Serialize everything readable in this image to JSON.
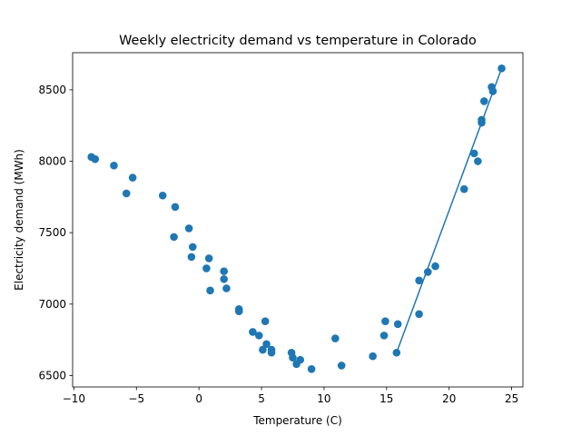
{
  "chart_data": {
    "type": "scatter",
    "title": "Weekly electricity demand vs temperature in Colorado",
    "xlabel": "Temperature (C)",
    "ylabel": "Electricity demand (MWh)",
    "xlim": [
      -10.1,
      25.9
    ],
    "ylim": [
      6420,
      8760
    ],
    "xticks": [
      -10,
      -5,
      0,
      5,
      10,
      15,
      20,
      25
    ],
    "yticks": [
      6500,
      7000,
      7500,
      8000,
      8500
    ],
    "grid": false,
    "legend": "none",
    "marker_color": "#1f77b4",
    "line_color": "#1f77b4",
    "points": [
      {
        "x": -8.6,
        "y": 8030
      },
      {
        "x": -8.3,
        "y": 8015
      },
      {
        "x": -6.8,
        "y": 7970
      },
      {
        "x": -5.3,
        "y": 7885
      },
      {
        "x": -5.8,
        "y": 7775
      },
      {
        "x": -2.9,
        "y": 7760
      },
      {
        "x": -1.9,
        "y": 7680
      },
      {
        "x": -0.8,
        "y": 7530
      },
      {
        "x": -2.0,
        "y": 7470
      },
      {
        "x": -0.5,
        "y": 7400
      },
      {
        "x": -0.6,
        "y": 7330
      },
      {
        "x": 0.8,
        "y": 7320
      },
      {
        "x": 0.6,
        "y": 7250
      },
      {
        "x": 2.0,
        "y": 7230
      },
      {
        "x": 2.0,
        "y": 7175
      },
      {
        "x": 2.2,
        "y": 7110
      },
      {
        "x": 0.9,
        "y": 7095
      },
      {
        "x": 3.2,
        "y": 6965
      },
      {
        "x": 3.2,
        "y": 6950
      },
      {
        "x": 5.3,
        "y": 6880
      },
      {
        "x": 4.3,
        "y": 6805
      },
      {
        "x": 4.8,
        "y": 6780
      },
      {
        "x": 5.4,
        "y": 6720
      },
      {
        "x": 5.1,
        "y": 6680
      },
      {
        "x": 5.8,
        "y": 6680
      },
      {
        "x": 5.8,
        "y": 6660
      },
      {
        "x": 7.4,
        "y": 6660
      },
      {
        "x": 7.5,
        "y": 6625
      },
      {
        "x": 8.1,
        "y": 6610
      },
      {
        "x": 7.8,
        "y": 6580
      },
      {
        "x": 9.0,
        "y": 6545
      },
      {
        "x": 10.9,
        "y": 6760
      },
      {
        "x": 11.4,
        "y": 6570
      },
      {
        "x": 13.9,
        "y": 6635
      },
      {
        "x": 14.9,
        "y": 6880
      },
      {
        "x": 14.8,
        "y": 6780
      },
      {
        "x": 15.9,
        "y": 6860
      },
      {
        "x": 15.8,
        "y": 6660
      },
      {
        "x": 17.6,
        "y": 6930
      },
      {
        "x": 17.6,
        "y": 7165
      },
      {
        "x": 18.3,
        "y": 7225
      },
      {
        "x": 18.9,
        "y": 7265
      },
      {
        "x": 21.2,
        "y": 7805
      },
      {
        "x": 22.0,
        "y": 8055
      },
      {
        "x": 22.3,
        "y": 8000
      },
      {
        "x": 22.6,
        "y": 8290
      },
      {
        "x": 22.6,
        "y": 8270
      },
      {
        "x": 22.8,
        "y": 8420
      },
      {
        "x": 23.4,
        "y": 8520
      },
      {
        "x": 23.5,
        "y": 8490
      },
      {
        "x": 24.2,
        "y": 8650
      }
    ],
    "fit_line": [
      {
        "x": 15.8,
        "y": 6660
      },
      {
        "x": 24.2,
        "y": 8650
      }
    ]
  }
}
